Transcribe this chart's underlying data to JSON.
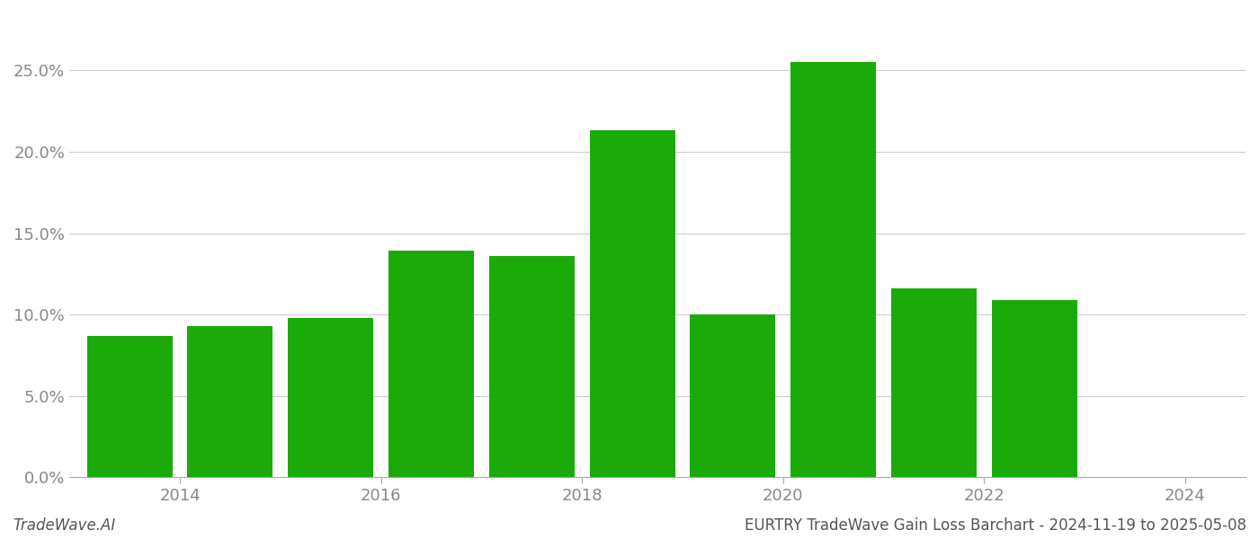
{
  "bar_positions": [
    0,
    1,
    2,
    3,
    4,
    5,
    6,
    7,
    8,
    9,
    10
  ],
  "values": [
    0.087,
    0.093,
    0.098,
    0.139,
    0.136,
    0.213,
    0.1,
    0.255,
    0.116,
    0.109,
    0.0
  ],
  "bar_color": "#1aab08",
  "background_color": "#ffffff",
  "grid_color": "#cccccc",
  "title": "EURTRY TradeWave Gain Loss Barchart - 2024-11-19 to 2025-05-08",
  "watermark": "TradeWave.AI",
  "ylim": [
    0,
    0.285
  ],
  "yticks": [
    0.0,
    0.05,
    0.1,
    0.15,
    0.2,
    0.25
  ],
  "xtick_positions": [
    0.5,
    2.5,
    4.5,
    6.5,
    8.5,
    10.5
  ],
  "xtick_labels": [
    "2014",
    "2016",
    "2018",
    "2020",
    "2022",
    "2024"
  ],
  "tick_label_color": "#888888",
  "title_color": "#555555",
  "watermark_color": "#555555",
  "bar_width": 0.85
}
